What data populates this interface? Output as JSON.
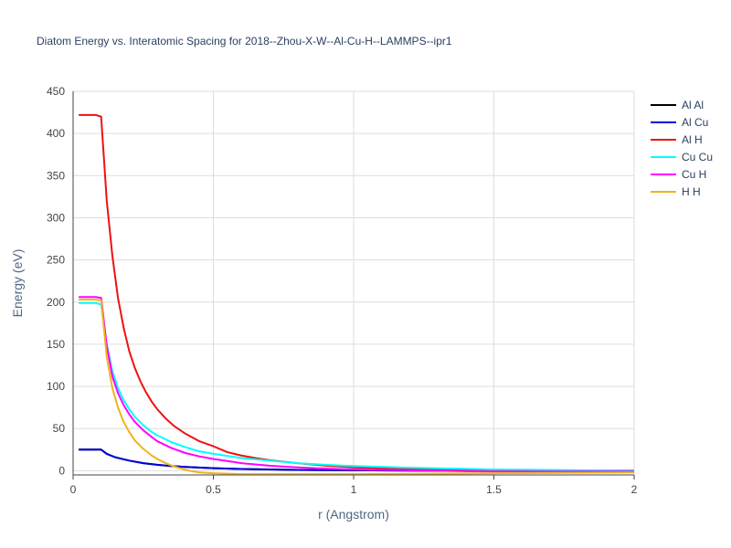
{
  "chart_data": {
    "type": "line",
    "title": "Diatom Energy vs. Interatomic Spacing for 2018--Zhou-X-W--Al-Cu-H--LAMMPS--ipr1",
    "xlabel": "r (Angstrom)",
    "ylabel": "Energy (eV)",
    "xlim": [
      0,
      2
    ],
    "ylim": [
      -5,
      450
    ],
    "x_ticks": [
      0,
      0.5,
      1,
      1.5,
      2
    ],
    "x_tick_labels": [
      "0",
      "0.5",
      "1",
      "1.5",
      "2"
    ],
    "y_ticks": [
      0,
      50,
      100,
      150,
      200,
      250,
      300,
      350,
      400,
      450
    ],
    "y_tick_labels": [
      "0",
      "50",
      "100",
      "150",
      "200",
      "250",
      "300",
      "350",
      "400",
      "450"
    ],
    "grid": true,
    "legend_position": "top-right",
    "series": [
      {
        "name": "Al Al",
        "color": "#000000",
        "points": [
          [
            0.02,
            25
          ],
          [
            0.1,
            25
          ],
          [
            0.12,
            20
          ],
          [
            0.15,
            16
          ],
          [
            0.2,
            12
          ],
          [
            0.25,
            9
          ],
          [
            0.3,
            7
          ],
          [
            0.35,
            5.5
          ],
          [
            0.4,
            4.5
          ],
          [
            0.5,
            3
          ],
          [
            0.6,
            2
          ],
          [
            0.7,
            1.5
          ],
          [
            0.8,
            1
          ],
          [
            1.0,
            0.5
          ],
          [
            1.2,
            0.2
          ],
          [
            1.5,
            0
          ],
          [
            2.0,
            0
          ]
        ]
      },
      {
        "name": "Al Cu",
        "color": "#0000dd",
        "points": [
          [
            0.02,
            25
          ],
          [
            0.1,
            25
          ],
          [
            0.12,
            20
          ],
          [
            0.15,
            16
          ],
          [
            0.2,
            12
          ],
          [
            0.25,
            9
          ],
          [
            0.3,
            7
          ],
          [
            0.35,
            5.5
          ],
          [
            0.4,
            4.5
          ],
          [
            0.5,
            3
          ],
          [
            0.6,
            2
          ],
          [
            0.7,
            1.5
          ],
          [
            0.8,
            1
          ],
          [
            1.0,
            0.5
          ],
          [
            1.2,
            0.2
          ],
          [
            1.5,
            0
          ],
          [
            2.0,
            0
          ]
        ]
      },
      {
        "name": "Al H",
        "color": "#ee1111",
        "points": [
          [
            0.02,
            422
          ],
          [
            0.08,
            422
          ],
          [
            0.1,
            420
          ],
          [
            0.12,
            320
          ],
          [
            0.14,
            255
          ],
          [
            0.16,
            205
          ],
          [
            0.18,
            170
          ],
          [
            0.2,
            142
          ],
          [
            0.22,
            122
          ],
          [
            0.24,
            106
          ],
          [
            0.26,
            93
          ],
          [
            0.28,
            82
          ],
          [
            0.3,
            73
          ],
          [
            0.33,
            62
          ],
          [
            0.36,
            53
          ],
          [
            0.4,
            44
          ],
          [
            0.45,
            35
          ],
          [
            0.5,
            29
          ],
          [
            0.55,
            22
          ],
          [
            0.6,
            18
          ],
          [
            0.65,
            15
          ],
          [
            0.7,
            12.5
          ],
          [
            0.8,
            9
          ],
          [
            0.9,
            6
          ],
          [
            1.0,
            4
          ],
          [
            1.2,
            2
          ],
          [
            1.5,
            0
          ],
          [
            2.0,
            -1
          ]
        ]
      },
      {
        "name": "Cu Cu",
        "color": "#00ffff",
        "points": [
          [
            0.02,
            199
          ],
          [
            0.08,
            199
          ],
          [
            0.1,
            197
          ],
          [
            0.12,
            150
          ],
          [
            0.14,
            118
          ],
          [
            0.16,
            98
          ],
          [
            0.18,
            84
          ],
          [
            0.2,
            73
          ],
          [
            0.22,
            64
          ],
          [
            0.25,
            54
          ],
          [
            0.28,
            46
          ],
          [
            0.3,
            42
          ],
          [
            0.35,
            34
          ],
          [
            0.4,
            28
          ],
          [
            0.45,
            23
          ],
          [
            0.5,
            20
          ],
          [
            0.6,
            15
          ],
          [
            0.7,
            12
          ],
          [
            0.8,
            9
          ],
          [
            0.9,
            7
          ],
          [
            1.0,
            5.5
          ],
          [
            1.2,
            3.5
          ],
          [
            1.5,
            1.5
          ],
          [
            1.8,
            0.5
          ],
          [
            2.0,
            0
          ]
        ]
      },
      {
        "name": "Cu H",
        "color": "#ff00ff",
        "points": [
          [
            0.02,
            206
          ],
          [
            0.08,
            206
          ],
          [
            0.1,
            205
          ],
          [
            0.12,
            148
          ],
          [
            0.14,
            112
          ],
          [
            0.16,
            92
          ],
          [
            0.18,
            78
          ],
          [
            0.2,
            67
          ],
          [
            0.22,
            58
          ],
          [
            0.25,
            48
          ],
          [
            0.28,
            40
          ],
          [
            0.3,
            35
          ],
          [
            0.35,
            27
          ],
          [
            0.4,
            21
          ],
          [
            0.45,
            17
          ],
          [
            0.5,
            14
          ],
          [
            0.6,
            9
          ],
          [
            0.7,
            6
          ],
          [
            0.8,
            4
          ],
          [
            0.9,
            2.5
          ],
          [
            1.0,
            1.5
          ],
          [
            1.2,
            0.5
          ],
          [
            1.5,
            -1
          ],
          [
            2.0,
            -1
          ]
        ]
      },
      {
        "name": "H H",
        "color": "#f0b41a",
        "points": [
          [
            0.02,
            203
          ],
          [
            0.08,
            203
          ],
          [
            0.1,
            202
          ],
          [
            0.12,
            135
          ],
          [
            0.14,
            98
          ],
          [
            0.16,
            75
          ],
          [
            0.18,
            58
          ],
          [
            0.2,
            46
          ],
          [
            0.22,
            36
          ],
          [
            0.25,
            26
          ],
          [
            0.28,
            18
          ],
          [
            0.3,
            14
          ],
          [
            0.33,
            9
          ],
          [
            0.36,
            5
          ],
          [
            0.4,
            1
          ],
          [
            0.45,
            -2
          ],
          [
            0.5,
            -3
          ],
          [
            0.6,
            -4
          ],
          [
            0.8,
            -4
          ],
          [
            1.0,
            -4
          ],
          [
            1.5,
            -3
          ],
          [
            2.0,
            -2
          ]
        ]
      }
    ]
  }
}
